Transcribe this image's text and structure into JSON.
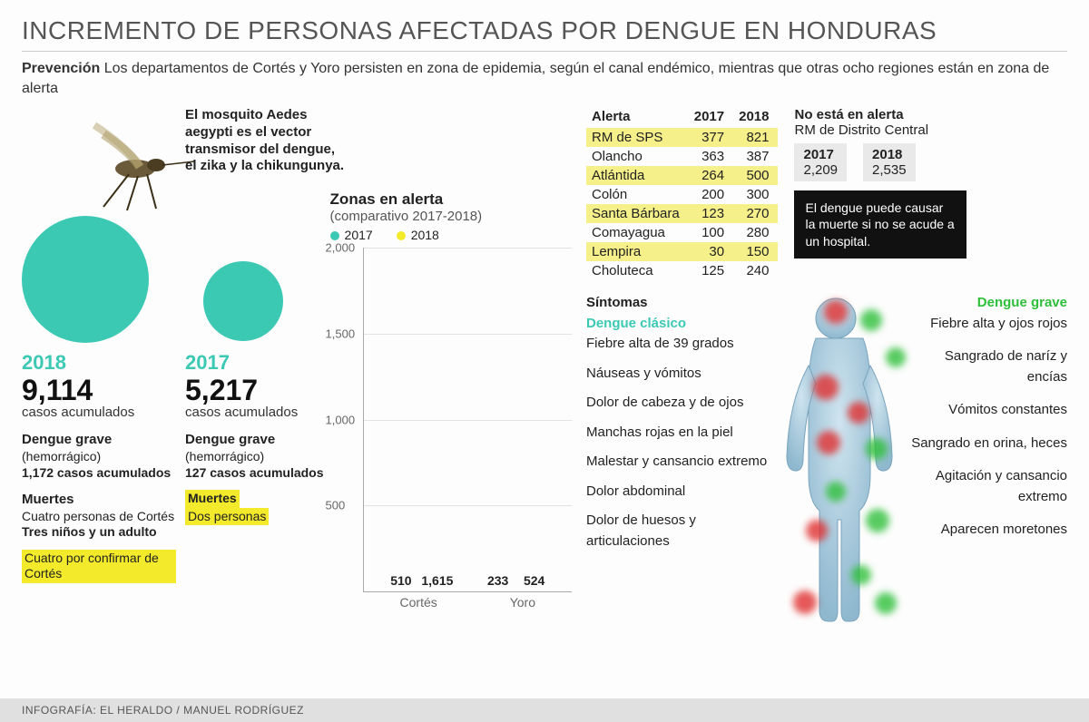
{
  "title": "INCREMENTO DE PERSONAS AFECTADAS POR DENGUE EN HONDURAS",
  "subtitle_bold": "Prevención",
  "subtitle_rest": " Los departamentos de Cortés y Yoro persisten en zona de epidemia, según el canal endémico, mientras que otras ocho regiones están en zona de alerta",
  "mosquito_note": "El mosquito Aedes aegypti es el vector transmisor del dengue, el zika y la chikungunya.",
  "colors": {
    "teal": "#3cc9b4",
    "yellow": "#f2ea2a",
    "green": "#2fbf3a",
    "red": "#e03131",
    "bg": "#fdfdfd",
    "grid": "#e3e3e3"
  },
  "y2018": {
    "year": "2018",
    "count": "9,114",
    "count_label": "casos acumulados",
    "grave_h": "Dengue grave",
    "grave_sub": "(hemorrágico)",
    "grave_val": "1,172 casos acumulados",
    "muertes_h": "Muertes",
    "muertes_p1": "Cuatro personas de Cortés",
    "muertes_p2": "Tres niños y un adulto",
    "pending": "Cuatro por confirmar de Cortés"
  },
  "y2017": {
    "year": "2017",
    "count": "5,217",
    "count_label": "casos acumulados",
    "grave_h": "Dengue grave",
    "grave_sub": "(hemorrágico)",
    "grave_val": "127 casos acumulados",
    "muertes_h": "Muertes",
    "muertes_p1": "Dos personas"
  },
  "chart": {
    "title": "Zonas en alerta",
    "subtitle": "(comparativo 2017-2018)",
    "legend": {
      "a": "2017",
      "b": "2018"
    },
    "series_colors": {
      "a": "#3cc9b4",
      "b": "#f2ea2a"
    },
    "ylim": 2000,
    "yticks": [
      500,
      1000,
      1500,
      2000
    ],
    "yticks_fmt": [
      "500",
      "1,000",
      "1,500",
      "2,000"
    ],
    "categories": [
      "Cortés",
      "Yoro"
    ],
    "data": {
      "Cortés": {
        "a": 510,
        "b": 1615,
        "b_label": "1,615"
      },
      "Yoro": {
        "a": 233,
        "b": 524
      }
    }
  },
  "table": {
    "headers": [
      "Alerta",
      "2017",
      "2018"
    ],
    "rows": [
      [
        "RM de SPS",
        "377",
        "821"
      ],
      [
        "Olancho",
        "363",
        "387"
      ],
      [
        "Atlántida",
        "264",
        "500"
      ],
      [
        "Colón",
        "200",
        "300"
      ],
      [
        "Santa Bárbara",
        "123",
        "270"
      ],
      [
        "Comayagua",
        "100",
        "280"
      ],
      [
        "Lempira",
        "30",
        "150"
      ],
      [
        "Choluteca",
        "125",
        "240"
      ]
    ]
  },
  "no_alert": {
    "title": "No está en alerta",
    "sub": "RM de  Distrito Central",
    "cells": [
      {
        "y": "2017",
        "v": "2,209"
      },
      {
        "y": "2018",
        "v": "2,535"
      }
    ]
  },
  "warn": "El dengue puede causar la muerte si no se acude a un hospital.",
  "symptoms": {
    "header": "Síntomas",
    "left_title": "Dengue clásico",
    "left": [
      "Fiebre alta de 39 grados",
      "Náuseas y vómitos",
      "Dolor de cabeza y de ojos",
      "Manchas rojas en la piel",
      "Malestar y cansancio extremo",
      "Dolor abdominal",
      "Dolor de huesos y articulaciones"
    ],
    "right_title": "Dengue grave",
    "right": [
      "Fiebre alta y ojos rojos",
      "Sangrado de naríz y encías",
      "Vómitos constantes",
      "Sangrado en orina, heces",
      "Agitación y cansancio extremo",
      "Aparecen moretones"
    ]
  },
  "body_spots": {
    "red": [
      [
        62,
        8,
        26
      ],
      [
        50,
        90,
        28
      ],
      [
        88,
        120,
        24
      ],
      [
        54,
        152,
        26
      ],
      [
        42,
        250,
        24
      ],
      [
        28,
        328,
        26
      ]
    ],
    "green": [
      [
        102,
        18,
        24
      ],
      [
        130,
        60,
        22
      ],
      [
        108,
        160,
        24
      ],
      [
        64,
        208,
        22
      ],
      [
        108,
        238,
        26
      ],
      [
        92,
        300,
        22
      ],
      [
        118,
        330,
        24
      ]
    ]
  },
  "footer": "INFOGRAFÍA: EL HERALDO / MANUEL RODRÍGUEZ"
}
